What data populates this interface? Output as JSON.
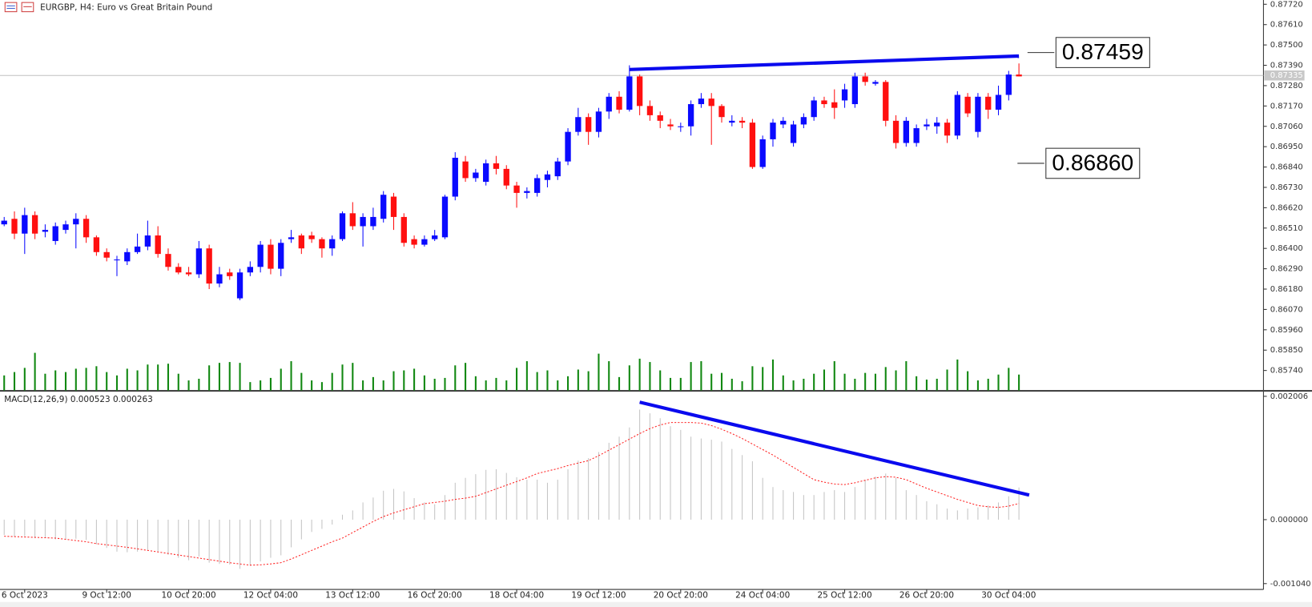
{
  "chart_data": [
    {
      "type": "candlestick",
      "title": "EURGBP, H4:  Euro vs Great Britain Pound",
      "categories": [
        null,
        null,
        "6 Oct 2023",
        null,
        null,
        null,
        null,
        null,
        null,
        null,
        "9 Oct 12:00",
        null,
        null,
        null,
        null,
        null,
        null,
        null,
        "10 Oct 20:00",
        null,
        null,
        null,
        null,
        null,
        null,
        null,
        "12 Oct 04:00",
        null,
        null,
        null,
        null,
        null,
        null,
        null,
        "13 Oct 12:00",
        null,
        null,
        null,
        null,
        null,
        null,
        null,
        "16 Oct 20:00",
        null,
        null,
        null,
        null,
        null,
        null,
        null,
        "18 Oct 04:00",
        null,
        null,
        null,
        null,
        null,
        null,
        null,
        "19 Oct 12:00",
        null,
        null,
        null,
        null,
        null,
        null,
        null,
        "20 Oct 20:00",
        null,
        null,
        null,
        null,
        null,
        null,
        null,
        "24 Oct 04:00",
        null,
        null,
        null,
        null,
        null,
        null,
        null,
        "25 Oct 12:00",
        null,
        null,
        null,
        null,
        null,
        null,
        null,
        "26 Oct 20:00",
        null,
        null,
        null,
        null,
        null,
        null,
        null,
        "30 Oct 04:00",
        null
      ],
      "open": [
        0.8653,
        0.8656,
        0.8648,
        0.8658,
        0.8649,
        0.8644,
        0.865,
        0.8653,
        0.8656,
        0.8646,
        0.8638,
        0.8634,
        0.8633,
        0.8638,
        0.8641,
        0.8647,
        0.8637,
        0.863,
        0.8627,
        0.8626,
        0.864,
        0.8621,
        0.8627,
        0.8613,
        0.8627,
        0.863,
        0.8642,
        0.8629,
        0.8645,
        0.8647,
        0.8647,
        0.8645,
        0.864,
        0.8645,
        0.8659,
        0.8652,
        0.8652,
        0.8656,
        0.8668,
        0.8657,
        0.8645,
        0.8642,
        0.8645,
        0.8646,
        0.8668,
        0.8687,
        0.8678,
        0.8676,
        0.8686,
        0.8683,
        0.8674,
        0.867,
        0.867,
        0.8677,
        0.8679,
        0.8687,
        0.8703,
        0.8711,
        0.8703,
        0.8714,
        0.8722,
        0.8715,
        0.8733,
        0.8717,
        0.8712,
        0.8707,
        0.8706,
        0.8706,
        0.8718,
        0.8721,
        0.8717,
        0.8708,
        0.8709,
        0.8708,
        0.8684,
        0.8699,
        0.8707,
        0.8697,
        0.8707,
        0.8711,
        0.872,
        0.8719,
        0.872,
        0.8718,
        0.8733,
        0.8729,
        0.873,
        0.8709,
        0.8697,
        0.8697,
        0.8706,
        0.8706,
        0.8708,
        0.8701,
        0.8722,
        0.8703,
        0.8722,
        0.8715,
        0.8723,
        0.8734
      ],
      "close": [
        0.8655,
        0.8648,
        0.8658,
        0.8648,
        0.865,
        0.8652,
        0.8653,
        0.8656,
        0.8646,
        0.8638,
        0.8635,
        0.8634,
        0.8638,
        0.8641,
        0.8647,
        0.8637,
        0.863,
        0.8627,
        0.8626,
        0.864,
        0.8621,
        0.8626,
        0.8625,
        0.8627,
        0.863,
        0.8642,
        0.8629,
        0.8643,
        0.8646,
        0.864,
        0.8645,
        0.864,
        0.8645,
        0.8659,
        0.8652,
        0.8657,
        0.8657,
        0.8669,
        0.8657,
        0.8643,
        0.8642,
        0.8645,
        0.8647,
        0.8668,
        0.8689,
        0.8678,
        0.8681,
        0.8686,
        0.8683,
        0.8674,
        0.867,
        0.8671,
        0.8678,
        0.868,
        0.8687,
        0.8703,
        0.8711,
        0.8703,
        0.8714,
        0.8722,
        0.8715,
        0.8733,
        0.8717,
        0.8712,
        0.8709,
        0.8706,
        0.8706,
        0.8718,
        0.8721,
        0.8717,
        0.8711,
        0.8709,
        0.8708,
        0.8684,
        0.8699,
        0.8708,
        0.8709,
        0.8707,
        0.8711,
        0.872,
        0.8718,
        0.8716,
        0.8726,
        0.8733,
        0.873,
        0.873,
        0.8709,
        0.8697,
        0.8709,
        0.8705,
        0.8707,
        0.8708,
        0.8701,
        0.8723,
        0.8713,
        0.8722,
        0.8715,
        0.8723,
        0.8734,
        0.8733
      ],
      "high": [
        0.8657,
        0.866,
        0.8662,
        0.866,
        0.8653,
        0.8654,
        0.8655,
        0.8659,
        0.8658,
        0.8647,
        0.864,
        0.8636,
        0.864,
        0.8648,
        0.8655,
        0.8652,
        0.864,
        0.8632,
        0.863,
        0.8644,
        0.8642,
        0.863,
        0.8629,
        0.8629,
        0.8633,
        0.8644,
        0.8645,
        0.8645,
        0.865,
        0.8648,
        0.8649,
        0.8646,
        0.8647,
        0.866,
        0.8665,
        0.8659,
        0.8662,
        0.8671,
        0.867,
        0.8659,
        0.8647,
        0.8647,
        0.865,
        0.8669,
        0.8692,
        0.869,
        0.8683,
        0.8688,
        0.869,
        0.8685,
        0.8676,
        0.8673,
        0.868,
        0.8682,
        0.8689,
        0.8705,
        0.8716,
        0.8713,
        0.8716,
        0.8724,
        0.8725,
        0.8739,
        0.8734,
        0.872,
        0.8714,
        0.871,
        0.8708,
        0.872,
        0.8724,
        0.8724,
        0.8718,
        0.8712,
        0.8711,
        0.871,
        0.8701,
        0.871,
        0.8711,
        0.8709,
        0.8713,
        0.8722,
        0.8722,
        0.8726,
        0.8729,
        0.8735,
        0.8735,
        0.8731,
        0.8731,
        0.8712,
        0.8711,
        0.8707,
        0.871,
        0.8711,
        0.871,
        0.8725,
        0.8724,
        0.8724,
        0.8724,
        0.8728,
        0.8736,
        0.874
      ],
      "low": [
        0.8652,
        0.8645,
        0.8637,
        0.8645,
        0.8646,
        0.8642,
        0.8648,
        0.864,
        0.8643,
        0.8636,
        0.8633,
        0.8625,
        0.8631,
        0.8637,
        0.8639,
        0.8635,
        0.8628,
        0.8626,
        0.8625,
        0.8624,
        0.8618,
        0.8619,
        0.8623,
        0.8612,
        0.8625,
        0.8627,
        0.8626,
        0.8625,
        0.8643,
        0.8637,
        0.8643,
        0.8635,
        0.8636,
        0.8644,
        0.865,
        0.8641,
        0.865,
        0.8654,
        0.865,
        0.8641,
        0.864,
        0.8641,
        0.8644,
        0.8645,
        0.8666,
        0.8676,
        0.8676,
        0.8674,
        0.868,
        0.8672,
        0.8662,
        0.8667,
        0.8668,
        0.8673,
        0.8677,
        0.8685,
        0.8701,
        0.8696,
        0.87,
        0.871,
        0.8713,
        0.8714,
        0.8712,
        0.8709,
        0.8705,
        0.8704,
        0.8703,
        0.8701,
        0.8716,
        0.8696,
        0.8708,
        0.8706,
        0.8705,
        0.8683,
        0.8683,
        0.8695,
        0.8705,
        0.8695,
        0.8705,
        0.8709,
        0.8716,
        0.871,
        0.8716,
        0.8716,
        0.8728,
        0.8728,
        0.8706,
        0.8694,
        0.8695,
        0.8695,
        0.8704,
        0.8702,
        0.8697,
        0.8699,
        0.8711,
        0.87,
        0.871,
        0.8712,
        0.872,
        0.8733
      ],
      "colors": {
        "up": "#0a0aff",
        "down": "#ff1010"
      },
      "ylim": [
        0.85632,
        0.87743
      ],
      "yticks": [
        {
          "value": 0.8772,
          "label": "0.87720"
        },
        {
          "value": 0.8761,
          "label": "0.87610"
        },
        {
          "value": 0.875,
          "label": "0.87500"
        },
        {
          "value": 0.8739,
          "label": "0.87390"
        },
        {
          "value": 0.8728,
          "label": "0.87280"
        },
        {
          "value": 0.8717,
          "label": "0.87170"
        },
        {
          "value": 0.8706,
          "label": "0.87060"
        },
        {
          "value": 0.8695,
          "label": "0.86950"
        },
        {
          "value": 0.8684,
          "label": "0.86840"
        },
        {
          "value": 0.8673,
          "label": "0.86730"
        },
        {
          "value": 0.8662,
          "label": "0.86620"
        },
        {
          "value": 0.8651,
          "label": "0.86510"
        },
        {
          "value": 0.864,
          "label": "0.86400"
        },
        {
          "value": 0.8629,
          "label": "0.86290"
        },
        {
          "value": 0.8618,
          "label": "0.86180"
        },
        {
          "value": 0.8607,
          "label": "0.86070"
        },
        {
          "value": 0.8596,
          "label": "0.85960"
        },
        {
          "value": 0.8585,
          "label": "0.85850"
        },
        {
          "value": 0.8574,
          "label": "0.85740"
        }
      ],
      "current_price": {
        "value": 0.87335,
        "label": "0.87335"
      },
      "trendline": {
        "from": 61,
        "to": 99,
        "values": [
          0.87367,
          0.8744
        ],
        "color": "#0a0aee"
      },
      "annotations": [
        {
          "value": 0.87459,
          "label": "0.87459"
        },
        {
          "value": 0.8686,
          "label": "0.86860"
        }
      ]
    },
    {
      "type": "volume",
      "values": [
        18,
        22,
        27,
        45,
        20,
        24,
        22,
        26,
        27,
        29,
        22,
        18,
        26,
        24,
        31,
        31,
        32,
        20,
        12,
        14,
        30,
        33,
        34,
        33,
        10,
        12,
        15,
        26,
        35,
        21,
        12,
        10,
        21,
        31,
        33,
        12,
        16,
        12,
        23,
        24,
        26,
        18,
        14,
        15,
        30,
        33,
        17,
        12,
        15,
        12,
        27,
        35,
        22,
        24,
        12,
        17,
        25,
        23,
        44,
        35,
        16,
        30,
        38,
        34,
        24,
        15,
        15,
        34,
        35,
        20,
        21,
        14,
        11,
        29,
        28,
        37,
        18,
        12,
        14,
        20,
        25,
        35,
        20,
        14,
        21,
        20,
        28,
        24,
        35,
        17,
        13,
        14,
        25,
        37,
        23,
        12,
        14,
        19,
        27,
        19
      ],
      "color": "#118811",
      "ylim": [
        0,
        100
      ]
    },
    {
      "type": "macd",
      "title": "MACD(12,26,9) 0.000523 0.000263",
      "histogram": [
        -0.00025,
        -0.00028,
        -0.00027,
        -0.0003,
        -0.0003,
        -0.00032,
        -0.00032,
        -0.00031,
        -0.00033,
        -0.0004,
        -0.00046,
        -0.00052,
        -0.00053,
        -0.00052,
        -0.00049,
        -0.00052,
        -0.00057,
        -0.00062,
        -0.00066,
        -0.0006,
        -0.0007,
        -0.00072,
        -0.00073,
        -0.0008,
        -0.00075,
        -0.00068,
        -0.00062,
        -0.00058,
        -0.00045,
        -0.00032,
        -0.0002,
        -0.00015,
        -8e-05,
        8e-05,
        0.00015,
        0.00028,
        0.00036,
        0.00047,
        0.0005,
        0.00046,
        0.00035,
        0.00028,
        0.00025,
        0.0004,
        0.0006,
        0.00068,
        0.00074,
        0.00081,
        0.00082,
        0.00076,
        0.00069,
        0.00065,
        0.00065,
        0.0006,
        0.00065,
        0.00082,
        0.00096,
        0.001,
        0.0011,
        0.00125,
        0.00135,
        0.0015,
        0.00179,
        0.00173,
        0.00165,
        0.00152,
        0.00146,
        0.00135,
        0.00132,
        0.0013,
        0.00127,
        0.00115,
        0.00105,
        0.00095,
        0.00068,
        0.00053,
        0.00048,
        0.00045,
        0.0004,
        0.0004,
        0.00045,
        0.00048,
        0.00045,
        0.00053,
        0.00065,
        0.0007,
        0.00075,
        0.00068,
        0.00048,
        0.0004,
        0.0003,
        0.00025,
        0.00018,
        0.00015,
        0.00018,
        0.0002,
        0.00023,
        0.00028,
        0.00038,
        0.000523
      ],
      "signal": [
        -0.00027,
        -0.000276,
        -0.000282,
        -0.000288,
        -0.000294,
        -0.0003,
        -0.00032,
        -0.00034,
        -0.00036,
        -0.00039,
        -0.00041,
        -0.00043,
        -0.00045,
        -0.000475,
        -0.0005,
        -0.000525,
        -0.00055,
        -0.000575,
        -0.0006,
        -0.000625,
        -0.00065,
        -0.000675,
        -0.0007,
        -0.00072,
        -0.00074,
        -0.000735,
        -0.00072,
        -0.0007,
        -0.00064,
        -0.00057,
        -0.0005,
        -0.00043,
        -0.00036,
        -0.0003,
        -0.00021,
        -0.00012,
        -3e-05,
        5e-05,
        0.00011,
        0.00016,
        0.00021,
        0.00026,
        0.00028,
        0.0003,
        0.00033,
        0.00035,
        0.00038,
        0.00044,
        0.0005,
        0.00056,
        0.00062,
        0.00068,
        0.00075,
        0.00079,
        0.00083,
        0.00088,
        0.00092,
        0.00096,
        0.00104,
        0.00113,
        0.00122,
        0.00131,
        0.0014,
        0.00148,
        0.00154,
        0.00158,
        0.00158,
        0.00158,
        0.00157,
        0.00153,
        0.00147,
        0.0014,
        0.00132,
        0.00123,
        0.00114,
        0.00105,
        0.00095,
        0.00085,
        0.00075,
        0.00065,
        0.00061,
        0.00058,
        0.00057,
        0.0006,
        0.00064,
        0.00068,
        0.0007,
        0.00069,
        0.00065,
        0.00058,
        0.00051,
        0.00045,
        0.00039,
        0.00033,
        0.00028,
        0.00023,
        0.00021,
        0.0002,
        0.00022,
        0.000263
      ],
      "histogram_color": "#c4c4c4",
      "signal_color": "#ff2020",
      "ylim": [
        -0.001135,
        0.002074
      ],
      "yticks": [
        {
          "value": 0.002006,
          "label": "0.002006"
        },
        {
          "value": 0,
          "label": "0.000000"
        },
        {
          "value": -0.00104,
          "label": "-0.001040"
        }
      ],
      "trendline": {
        "from": 62,
        "to": 100,
        "values": [
          0.00191,
          0.0004
        ],
        "color": "#0a0aee"
      }
    }
  ]
}
